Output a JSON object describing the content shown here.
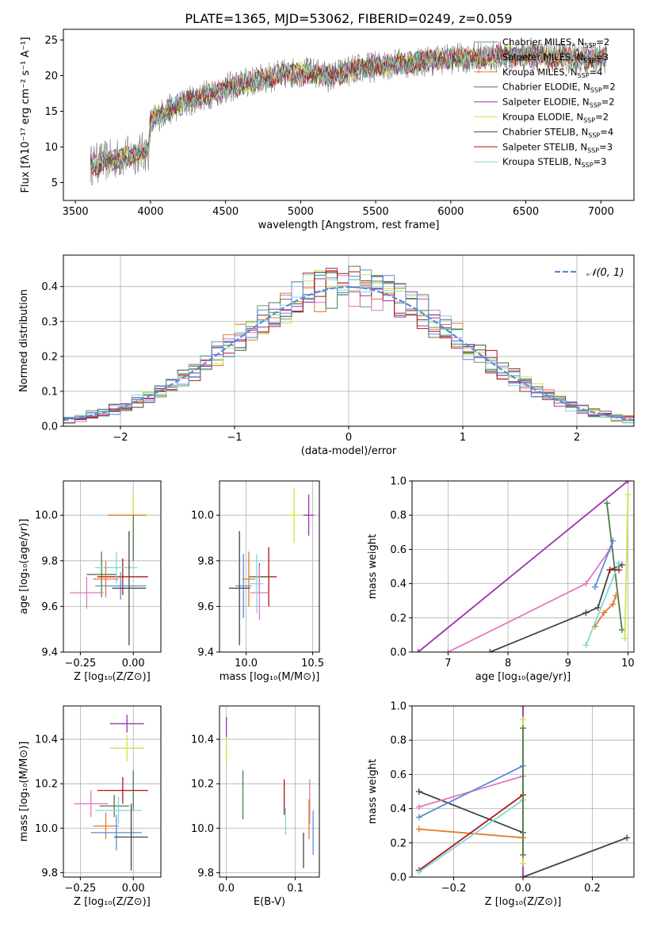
{
  "title": "PLATE=1365, MJD=53062, FIBERID=0249, z=0.059",
  "palette": {
    "chabrier_miles": "#6a9a6a",
    "salpeter_miles": "#e377c2",
    "kroupa_miles": "#e07b2a",
    "chabrier_elodie": "#4a7d4a",
    "salpeter_elodie": "#9b30b0",
    "kroupa_elodie": "#d4e04a",
    "chabrier_stelib": "#444444",
    "salpeter_stelib": "#b01515",
    "kroupa_stelib": "#7fd8d8",
    "blue": "#5b8bd6",
    "grid": "#b0b0b0"
  },
  "chart_data": [
    {
      "id": "spectrum",
      "type": "line",
      "xlabel": "wavelength [Angstrom, rest frame]",
      "ylabel": "Flux [fλ10⁻¹⁷ erg cm⁻² s⁻¹ A⁻¹]",
      "xlim": [
        3420,
        7220
      ],
      "ylim": [
        2.5,
        26.5
      ],
      "xticks": [
        3500,
        4000,
        4500,
        5000,
        5500,
        6000,
        6500,
        7000
      ],
      "yticks": [
        5,
        10,
        15,
        20,
        25
      ],
      "grid": false,
      "legend_position": "upper-right",
      "continuum": {
        "x": [
          3600,
          3700,
          3800,
          3900,
          3990,
          4000,
          4100,
          4200,
          4300,
          4400,
          4500,
          4600,
          4700,
          4800,
          4900,
          5000,
          5100,
          5200,
          5300,
          5400,
          5500,
          5600,
          5700,
          5800,
          5900,
          6000,
          6100,
          6200,
          6300,
          6400,
          6500,
          6600,
          6700,
          6800,
          6900,
          7000,
          7040
        ],
        "y": [
          7.5,
          8.0,
          8.5,
          9.0,
          9.5,
          13.5,
          15.0,
          16.0,
          16.8,
          17.5,
          18.2,
          18.8,
          19.3,
          19.8,
          20.2,
          20.5,
          20.3,
          19.8,
          20.6,
          21.0,
          21.3,
          21.6,
          21.8,
          22.0,
          22.2,
          22.4,
          22.5,
          22.6,
          22.7,
          22.7,
          22.8,
          22.7,
          22.6,
          22.5,
          22.5,
          22.4,
          22.4
        ]
      },
      "series": [
        {
          "name": "Chabrier MILES, N",
          "sub": "SSP",
          "suffix": "=2",
          "color_key": "chabrier_miles"
        },
        {
          "name": "Salpeter MILES, N",
          "sub": "SSP",
          "suffix": "=3",
          "color_key": "salpeter_miles"
        },
        {
          "name": "Kroupa MILES, N",
          "sub": "SSP",
          "suffix": "=4",
          "color_key": "kroupa_miles"
        },
        {
          "name": "Chabrier ELODIE, N",
          "sub": "SSP",
          "suffix": "=2",
          "color_key": "chabrier_elodie"
        },
        {
          "name": "Salpeter ELODIE, N",
          "sub": "SSP",
          "suffix": "=2",
          "color_key": "salpeter_elodie"
        },
        {
          "name": "Kroupa ELODIE, N",
          "sub": "SSP",
          "suffix": "=2",
          "color_key": "kroupa_elodie"
        },
        {
          "name": "Chabrier STELIB, N",
          "sub": "SSP",
          "suffix": "=4",
          "color_key": "chabrier_stelib"
        },
        {
          "name": "Salpeter STELIB, N",
          "sub": "SSP",
          "suffix": "=3",
          "color_key": "salpeter_stelib"
        },
        {
          "name": "Kroupa STELIB, N",
          "sub": "SSP",
          "suffix": "=3",
          "color_key": "kroupa_stelib"
        }
      ]
    },
    {
      "id": "residuals",
      "type": "area",
      "xlabel": "(data-model)/error",
      "ylabel": "Normed distribution",
      "xlim": [
        -2.5,
        2.5
      ],
      "ylim": [
        0,
        0.49
      ],
      "xticks": [
        -2,
        -1,
        0,
        1,
        2
      ],
      "xtick_labels": [
        "−2",
        "−1",
        "0",
        "1",
        "2"
      ],
      "yticks": [
        0.0,
        0.1,
        0.2,
        0.3,
        0.4
      ],
      "ytick_labels": [
        "0.0",
        "0.1",
        "0.2",
        "0.3",
        "0.4"
      ],
      "grid": true,
      "legend_position": "upper-right",
      "reference_label": "𝒩(0, 1)",
      "bin_width": 0.1,
      "bin_start": -2.5,
      "bins": 50
    },
    {
      "id": "age_vs_Z",
      "type": "scatter",
      "xlabel": "Z [log₁₀(Z/Z⊙)]",
      "ylabel": "age  [log₁₀(age/yr)]",
      "xlim": [
        -0.33,
        0.13
      ],
      "ylim": [
        9.4,
        10.15
      ],
      "xticks": [
        -0.25,
        0.0
      ],
      "xtick_labels": [
        "−0.25",
        "0.00"
      ],
      "yticks": [
        9.4,
        9.6,
        9.8,
        10.0
      ],
      "ytick_labels": [
        "9.4",
        "9.6",
        "9.8",
        "10.0"
      ],
      "grid": true,
      "points": [
        {
          "x": 0.0,
          "y": 10.0,
          "xerr": 0.08,
          "yerr": 0.1,
          "color_key": "kroupa_elodie"
        },
        {
          "x": -0.03,
          "y": 10.0,
          "xerr": 0.09,
          "yerr": 0.0,
          "color_key": "kroupa_miles"
        },
        {
          "x": 0.0,
          "y": 9.9,
          "xerr": 0.0,
          "yerr": 0.1,
          "color_key": "chabrier_elodie"
        },
        {
          "x": -0.15,
          "y": 9.74,
          "xerr": 0.07,
          "yerr": 0.1,
          "color_key": "chabrier_elodie"
        },
        {
          "x": -0.05,
          "y": 9.73,
          "xerr": 0.12,
          "yerr": 0.08,
          "color_key": "salpeter_stelib"
        },
        {
          "x": -0.08,
          "y": 9.77,
          "xerr": 0.1,
          "yerr": 0.07,
          "color_key": "kroupa_stelib"
        },
        {
          "x": -0.22,
          "y": 9.66,
          "xerr": 0.08,
          "yerr": 0.07,
          "color_key": "salpeter_miles"
        },
        {
          "x": -0.13,
          "y": 9.72,
          "xerr": 0.06,
          "yerr": 0.08,
          "color_key": "kroupa_miles"
        },
        {
          "x": -0.06,
          "y": 9.69,
          "xerr": 0.12,
          "yerr": 0.06,
          "color_key": "blue"
        },
        {
          "x": -0.02,
          "y": 9.68,
          "xerr": 0.08,
          "yerr": 0.25,
          "color_key": "chabrier_stelib"
        }
      ]
    },
    {
      "id": "age_vs_mass",
      "type": "scatter",
      "xlabel": "mass [log₁₀(M/M⊙)]",
      "ylabel": "",
      "xlim": [
        9.8,
        10.55
      ],
      "ylim": [
        9.4,
        10.15
      ],
      "xticks": [
        10.0,
        10.5
      ],
      "xtick_labels": [
        "10.0",
        "10.5"
      ],
      "yticks": [
        9.4,
        9.6,
        9.8,
        10.0
      ],
      "ytick_labels": [
        "9.4",
        "9.6",
        "9.8",
        "10.0"
      ],
      "grid": true,
      "points": [
        {
          "x": 10.36,
          "y": 10.0,
          "xerr": 0.05,
          "yerr": 0.12,
          "color_key": "kroupa_elodie"
        },
        {
          "x": 10.47,
          "y": 10.0,
          "xerr": 0.04,
          "yerr": 0.09,
          "color_key": "salpeter_elodie"
        },
        {
          "x": 10.17,
          "y": 9.73,
          "xerr": 0.06,
          "yerr": 0.13,
          "color_key": "salpeter_stelib"
        },
        {
          "x": 10.1,
          "y": 9.73,
          "xerr": 0.08,
          "yerr": 0.06,
          "color_key": "chabrier_elodie"
        },
        {
          "x": 10.1,
          "y": 9.66,
          "xerr": 0.07,
          "yerr": 0.12,
          "color_key": "salpeter_miles"
        },
        {
          "x": 10.02,
          "y": 9.72,
          "xerr": 0.05,
          "yerr": 0.12,
          "color_key": "kroupa_miles"
        },
        {
          "x": 10.08,
          "y": 9.7,
          "xerr": 0.05,
          "yerr": 0.13,
          "color_key": "kroupa_stelib"
        },
        {
          "x": 9.98,
          "y": 9.69,
          "xerr": 0.06,
          "yerr": 0.14,
          "color_key": "blue"
        },
        {
          "x": 9.95,
          "y": 9.68,
          "xerr": 0.08,
          "yerr": 0.25,
          "color_key": "chabrier_stelib"
        }
      ]
    },
    {
      "id": "weight_vs_age",
      "type": "line",
      "xlabel": "age  [log₁₀(age/yr)]",
      "ylabel": "mass weight",
      "xlim": [
        6.4,
        10.1
      ],
      "ylim": [
        0.0,
        1.0
      ],
      "xticks": [
        7,
        8,
        9,
        10
      ],
      "xtick_labels": [
        "7",
        "8",
        "9",
        "10"
      ],
      "yticks": [
        0.0,
        0.2,
        0.4,
        0.6,
        0.8,
        1.0
      ],
      "ytick_labels": [
        "0.0",
        "0.2",
        "0.4",
        "0.6",
        "0.8",
        "1.0"
      ],
      "grid": true,
      "series": [
        {
          "color_key": "salpeter_elodie",
          "x": [
            6.5,
            10.0
          ],
          "y": [
            0.0,
            1.0
          ]
        },
        {
          "color_key": "salpeter_miles",
          "x": [
            7.0,
            9.3,
            9.7
          ],
          "y": [
            0.0,
            0.4,
            0.6
          ]
        },
        {
          "color_key": "chabrier_stelib",
          "x": [
            7.7,
            9.3,
            9.5,
            9.7,
            9.9
          ],
          "y": [
            0.0,
            0.23,
            0.26,
            0.48,
            0.51
          ]
        },
        {
          "color_key": "chabrier_elodie",
          "x": [
            9.65,
            9.9
          ],
          "y": [
            0.87,
            0.13
          ]
        },
        {
          "color_key": "kroupa_elodie",
          "x": [
            9.95,
            10.0,
            9.95
          ],
          "y": [
            0.08,
            0.92,
            0.08
          ]
        },
        {
          "color_key": "kroupa_miles",
          "x": [
            9.45,
            9.6,
            9.75,
            9.8
          ],
          "y": [
            0.15,
            0.23,
            0.28,
            0.33
          ]
        },
        {
          "color_key": "blue",
          "x": [
            9.45,
            9.75
          ],
          "y": [
            0.38,
            0.65
          ]
        },
        {
          "color_key": "kroupa_stelib",
          "x": [
            9.3,
            9.85
          ],
          "y": [
            0.04,
            0.52
          ]
        },
        {
          "color_key": "salpeter_stelib",
          "x": [
            9.7,
            9.85
          ],
          "y": [
            0.48,
            0.48
          ]
        }
      ]
    },
    {
      "id": "mass_vs_Z",
      "type": "scatter",
      "xlabel": "Z [log₁₀(Z/Z⊙)]",
      "ylabel": "mass [log₁₀(M/M⊙)]",
      "xlim": [
        -0.33,
        0.13
      ],
      "ylim": [
        9.78,
        10.55
      ],
      "xticks": [
        -0.25,
        0.0
      ],
      "xtick_labels": [
        "−0.25",
        "0.00"
      ],
      "yticks": [
        9.8,
        10.0,
        10.2,
        10.4
      ],
      "ytick_labels": [
        "9.8",
        "10.0",
        "10.2",
        "10.4"
      ],
      "grid": true,
      "points": [
        {
          "x": -0.03,
          "y": 10.47,
          "xerr": 0.08,
          "yerr": 0.04,
          "color_key": "salpeter_elodie"
        },
        {
          "x": -0.03,
          "y": 10.36,
          "xerr": 0.08,
          "yerr": 0.06,
          "color_key": "kroupa_elodie"
        },
        {
          "x": -0.05,
          "y": 10.17,
          "xerr": 0.12,
          "yerr": 0.06,
          "color_key": "salpeter_stelib"
        },
        {
          "x": 0.0,
          "y": 10.17,
          "xerr": 0.0,
          "yerr": 0.09,
          "color_key": "chabrier_elodie"
        },
        {
          "x": -0.09,
          "y": 10.1,
          "xerr": 0.07,
          "yerr": 0.05,
          "color_key": "chabrier_elodie"
        },
        {
          "x": -0.2,
          "y": 10.11,
          "xerr": 0.08,
          "yerr": 0.06,
          "color_key": "salpeter_miles"
        },
        {
          "x": -0.07,
          "y": 10.08,
          "xerr": 0.11,
          "yerr": 0.06,
          "color_key": "kroupa_stelib"
        },
        {
          "x": -0.13,
          "y": 10.01,
          "xerr": 0.06,
          "yerr": 0.06,
          "color_key": "kroupa_miles"
        },
        {
          "x": -0.08,
          "y": 9.98,
          "xerr": 0.12,
          "yerr": 0.08,
          "color_key": "blue"
        },
        {
          "x": -0.01,
          "y": 9.96,
          "xerr": 0.08,
          "yerr": 0.15,
          "color_key": "chabrier_stelib"
        }
      ]
    },
    {
      "id": "mass_vs_ebv",
      "type": "scatter",
      "xlabel": "E(B-V)",
      "ylabel": "",
      "xlim": [
        -0.01,
        0.135
      ],
      "ylim": [
        9.78,
        10.55
      ],
      "xticks": [
        0.0,
        0.1
      ],
      "xtick_labels": [
        "0.0",
        "0.1"
      ],
      "yticks": [
        9.8,
        10.0,
        10.2,
        10.4
      ],
      "ytick_labels": [
        "9.8",
        "10.0",
        "10.2",
        "10.4"
      ],
      "grid": true,
      "points": [
        {
          "x": 0.0,
          "y": 10.45,
          "xerr": 0.0,
          "yerr": 0.05,
          "color_key": "salpeter_elodie"
        },
        {
          "x": 0.0,
          "y": 10.35,
          "xerr": 0.0,
          "yerr": 0.06,
          "color_key": "kroupa_elodie"
        },
        {
          "x": 0.024,
          "y": 10.15,
          "xerr": 0.0,
          "yerr": 0.11,
          "color_key": "chabrier_elodie"
        },
        {
          "x": 0.084,
          "y": 10.14,
          "xerr": 0.0,
          "yerr": 0.08,
          "color_key": "salpeter_stelib"
        },
        {
          "x": 0.086,
          "y": 10.03,
          "xerr": 0.0,
          "yerr": 0.06,
          "color_key": "kroupa_stelib"
        },
        {
          "x": 0.112,
          "y": 9.9,
          "xerr": 0.0,
          "yerr": 0.08,
          "color_key": "chabrier_stelib"
        },
        {
          "x": 0.121,
          "y": 10.12,
          "xerr": 0.0,
          "yerr": 0.1,
          "color_key": "salpeter_miles"
        },
        {
          "x": 0.12,
          "y": 10.04,
          "xerr": 0.0,
          "yerr": 0.09,
          "color_key": "kroupa_miles"
        },
        {
          "x": 0.126,
          "y": 9.98,
          "xerr": 0.0,
          "yerr": 0.1,
          "color_key": "blue"
        }
      ]
    },
    {
      "id": "weight_vs_Z",
      "type": "line",
      "xlabel": "Z [log₁₀(Z/Z⊙)]",
      "ylabel": "mass weight",
      "xlim": [
        -0.32,
        0.32
      ],
      "ylim": [
        0.0,
        1.0
      ],
      "xticks": [
        -0.2,
        0.0,
        0.2
      ],
      "xtick_labels": [
        "−0.2",
        "0.0",
        "0.2"
      ],
      "yticks": [
        0.0,
        0.2,
        0.4,
        0.6,
        0.8,
        1.0
      ],
      "ytick_labels": [
        "0.0",
        "0.2",
        "0.4",
        "0.6",
        "0.8",
        "1.0"
      ],
      "grid": true,
      "series": [
        {
          "color_key": "chabrier_stelib",
          "x": [
            -0.3,
            0.0
          ],
          "y": [
            0.5,
            0.26
          ]
        },
        {
          "color_key": "chabrier_stelib",
          "x": [
            0.0,
            0.3
          ],
          "y": [
            0.0,
            0.23
          ]
        },
        {
          "color_key": "salpeter_miles",
          "x": [
            -0.3,
            0.0
          ],
          "y": [
            0.41,
            0.59
          ]
        },
        {
          "color_key": "blue",
          "x": [
            -0.3,
            0.0
          ],
          "y": [
            0.35,
            0.65
          ]
        },
        {
          "color_key": "kroupa_miles",
          "x": [
            -0.3,
            0.0
          ],
          "y": [
            0.28,
            0.23
          ]
        },
        {
          "color_key": "salpeter_stelib",
          "x": [
            -0.3,
            0.0
          ],
          "y": [
            0.04,
            0.48
          ]
        },
        {
          "color_key": "kroupa_stelib",
          "x": [
            -0.3,
            0.0
          ],
          "y": [
            0.03,
            0.45
          ]
        },
        {
          "color_key": "salpeter_elodie",
          "x": [
            0.0,
            0.0
          ],
          "y": [
            0.0,
            1.0
          ]
        },
        {
          "color_key": "kroupa_elodie",
          "x": [
            0.0,
            0.0
          ],
          "y": [
            0.08,
            0.92
          ]
        },
        {
          "color_key": "chabrier_elodie",
          "x": [
            0.0,
            0.0
          ],
          "y": [
            0.13,
            0.87
          ]
        }
      ]
    }
  ]
}
